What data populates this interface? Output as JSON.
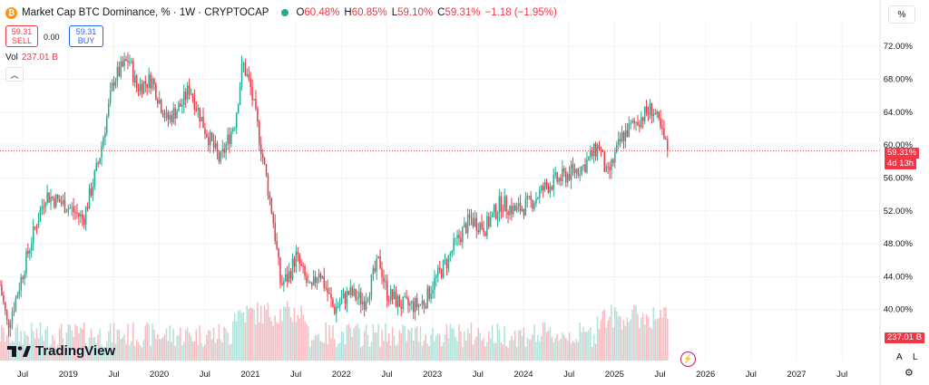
{
  "header": {
    "symbol": "Market Cap BTC Dominance, % · 1W · CRYPTOCAP",
    "ohlc": [
      {
        "label": "O",
        "value": "60.48%"
      },
      {
        "label": "H",
        "value": "60.85%"
      },
      {
        "label": "L",
        "value": "59.10%"
      },
      {
        "label": "C",
        "value": "59.31%"
      },
      {
        "label": "",
        "value": "−1.18 (−1.95%)"
      }
    ],
    "percent_toggle": "%"
  },
  "trade": {
    "sell_price": "59.31",
    "sell_label": "SELL",
    "spread": "0.00",
    "buy_price": "59.31",
    "buy_label": "BUY"
  },
  "volume_legend": {
    "label": "Vol",
    "value": "237.01 B"
  },
  "logo_text": "TradingView",
  "price_tag": {
    "price": "59.31%",
    "countdown": "4d 13h"
  },
  "volume_tag": "237.01 B",
  "bottom_controls": {
    "auto": "A",
    "log": "L"
  },
  "colors": {
    "up": "#22ab94",
    "down": "#f23645",
    "grid": "#f0f3fa"
  },
  "chart_data": {
    "type": "candlestick",
    "interval": "1W",
    "y_axis_ticks": [
      "72.00%",
      "68.00%",
      "64.00%",
      "60.00%",
      "56.00%",
      "52.00%",
      "48.00%",
      "44.00%",
      "40.00%"
    ],
    "ylim": [
      36,
      75
    ],
    "x_axis_ticks": [
      "Jul",
      "2019",
      "Jul",
      "2020",
      "Jul",
      "2021",
      "Jul",
      "2022",
      "Jul",
      "2023",
      "Jul",
      "2024",
      "Jul",
      "2025",
      "Jul",
      "2026",
      "Jul",
      "2027",
      "Jul"
    ],
    "x_range": [
      "2018-04",
      "2027-12"
    ],
    "grid": true,
    "series": [
      {
        "name": "BTC Dominance",
        "points": [
          [
            "2018-04",
            43
          ],
          [
            "2018-05",
            38
          ],
          [
            "2018-06",
            41
          ],
          [
            "2018-08",
            48
          ],
          [
            "2018-10",
            54
          ],
          [
            "2018-12",
            53
          ],
          [
            "2019-01",
            52.5
          ],
          [
            "2019-03",
            51
          ],
          [
            "2019-05",
            58
          ],
          [
            "2019-07",
            68
          ],
          [
            "2019-09",
            70.5
          ],
          [
            "2019-10",
            67
          ],
          [
            "2019-12",
            68
          ],
          [
            "2020-02",
            63
          ],
          [
            "2020-04",
            65
          ],
          [
            "2020-05",
            67
          ],
          [
            "2020-07",
            62
          ],
          [
            "2020-09",
            58
          ],
          [
            "2020-11",
            63
          ],
          [
            "2020-12",
            70
          ],
          [
            "2021-01",
            67
          ],
          [
            "2021-02",
            62
          ],
          [
            "2021-04",
            51
          ],
          [
            "2021-05",
            43
          ],
          [
            "2021-06",
            44
          ],
          [
            "2021-07",
            46.5
          ],
          [
            "2021-09",
            42
          ],
          [
            "2021-10",
            45
          ],
          [
            "2021-12",
            40
          ],
          [
            "2022-02",
            42
          ],
          [
            "2022-04",
            41
          ],
          [
            "2022-06",
            46
          ],
          [
            "2022-07",
            42
          ],
          [
            "2022-09",
            40.5
          ],
          [
            "2022-11",
            40.5
          ],
          [
            "2022-12",
            41
          ],
          [
            "2023-01",
            43
          ],
          [
            "2023-03",
            46
          ],
          [
            "2023-04",
            48
          ],
          [
            "2023-06",
            51
          ],
          [
            "2023-08",
            50
          ],
          [
            "2023-10",
            53
          ],
          [
            "2023-12",
            52
          ],
          [
            "2024-02",
            53
          ],
          [
            "2024-04",
            55
          ],
          [
            "2024-06",
            56
          ],
          [
            "2024-09",
            57.5
          ],
          [
            "2024-11",
            60
          ],
          [
            "2024-12",
            56
          ],
          [
            "2025-02",
            61
          ],
          [
            "2025-04",
            63
          ],
          [
            "2025-06",
            64.5
          ],
          [
            "2025-07",
            62
          ],
          [
            "2025-08",
            59.31
          ]
        ]
      }
    ],
    "volume": {
      "label": "Vol",
      "last": "237.01 B"
    }
  }
}
